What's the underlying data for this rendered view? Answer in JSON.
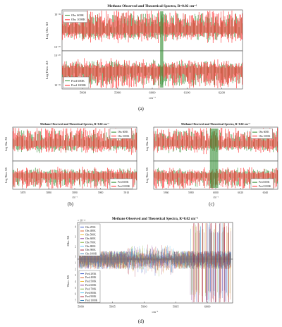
{
  "figure": {
    "captions": [
      "(a)",
      "(b)",
      "(c)",
      "(d)"
    ]
  },
  "chart_data": [
    {
      "id": "a",
      "type": "line",
      "title": "Methane Observed and Theoretical Spectra, R=0.02 cm⁻¹",
      "xlabel": "cm⁻¹",
      "xlim": [
        5740,
        6260
      ],
      "xticks": [
        "5800",
        "5900",
        "6000",
        "6100",
        "6200"
      ],
      "xtick_values": [
        5800,
        5900,
        6000,
        6100,
        6200
      ],
      "top_ylabel": "Log Obs. XS",
      "bottom_ylabel": "Log Theo. XS",
      "top_yticks": [
        "10⁻¹⁸",
        "10⁻²⁰"
      ],
      "bottom_yticks": [
        "10⁻²⁰",
        "10⁻¹⁸"
      ],
      "top_legend": [
        "Obs 600K",
        "Obs 1000K"
      ],
      "bottom_legend": [
        "Pred 600K",
        "Pred 1000K"
      ],
      "series": [
        {
          "name": "Obs 600K",
          "color": "#2e8b2e"
        },
        {
          "name": "Obs 1000K",
          "color": "#ff2020"
        },
        {
          "name": "Pred 600K",
          "color": "#2e8b2e"
        },
        {
          "name": "Pred 1000K",
          "color": "#ff2020"
        }
      ]
    },
    {
      "id": "b",
      "type": "line",
      "title": "Methane Observed and Theoretical Spectra, R=0.02 cm⁻¹",
      "xlabel": "cm⁻¹",
      "xlim": [
        5866,
        5914
      ],
      "xticks": [
        "5870",
        "5880",
        "5890",
        "5900",
        "5910"
      ],
      "xtick_values": [
        5870,
        5880,
        5890,
        5900,
        5910
      ],
      "top_ylabel": "Log Obs. XS",
      "bottom_ylabel": "Log Theo. XS",
      "top_legend": [
        "Obs 600K",
        "Obs 1000K"
      ],
      "bottom_legend": [
        "Pred 600K",
        "Pred 1000K"
      ],
      "series": [
        {
          "name": "Obs 600K",
          "color": "#2e8b2e"
        },
        {
          "name": "Obs 1000K",
          "color": "#ff2020"
        },
        {
          "name": "Pred 600K",
          "color": "#2e8b2e"
        },
        {
          "name": "Pred 1000K",
          "color": "#ff2020"
        }
      ]
    },
    {
      "id": "c",
      "type": "line",
      "title": "Methane Observed and Theoretical Spectra, R=0.02 cm⁻¹",
      "xlabel": "cm⁻¹",
      "xlim": [
        5950,
        6050
      ],
      "xticks": [
        "5960",
        "5980",
        "6000",
        "6020",
        "6040"
      ],
      "xtick_values": [
        5960,
        5980,
        6000,
        6020,
        6040
      ],
      "top_ylabel": "Log Obs. XS",
      "bottom_ylabel": "Log Theo. XS",
      "top_legend": [
        "Obs 600K",
        "Obs 1000K"
      ],
      "bottom_legend": [
        "Pred 600K",
        "Pred 1000K"
      ],
      "series": [
        {
          "name": "Obs 600K",
          "color": "#2e8b2e"
        },
        {
          "name": "Obs 1000K",
          "color": "#ff2020"
        },
        {
          "name": "Pred 600K",
          "color": "#2e8b2e"
        },
        {
          "name": "Pred 1000K",
          "color": "#ff2020"
        }
      ]
    },
    {
      "id": "d",
      "type": "line",
      "title": "Methane Observed and Theoretical Spectra, R=0.02 cm⁻¹",
      "xlabel": "cm⁻¹",
      "xlim": [
        5979.5,
        6004
      ],
      "xticks": [
        "5980",
        "5985",
        "5990",
        "5995",
        "6000"
      ],
      "xtick_values": [
        5980,
        5985,
        5990,
        5995,
        6000
      ],
      "y_exponent": "× 10⁻¹⁹",
      "top_ylabel": "Obs. XS",
      "bottom_ylabel": "Theo. XS",
      "top_yticks": [
        "4",
        "3",
        "2",
        "1"
      ],
      "bottom_yticks": [
        "1",
        "2",
        "3",
        "4",
        "5",
        "6",
        "7"
      ],
      "top_legend": [
        "Obs 295K",
        "Obs 400K",
        "Obs 500K",
        "Obs 600K",
        "Obs 700K",
        "Obs 800K",
        "Obs 900K",
        "Obs 1000K"
      ],
      "bottom_legend": [
        "Pred 295K",
        "Pred 400K",
        "Pred 500K",
        "Pred 600K",
        "Pred 700K",
        "Pred 800K",
        "Pred 900K",
        "Pred 1000K"
      ],
      "colors": [
        "#1f3fbf",
        "#d9541a",
        "#e8b020",
        "#7e2f8e",
        "#77ac30",
        "#4dbeee",
        "#a2142f",
        "#1f77b4"
      ]
    }
  ]
}
